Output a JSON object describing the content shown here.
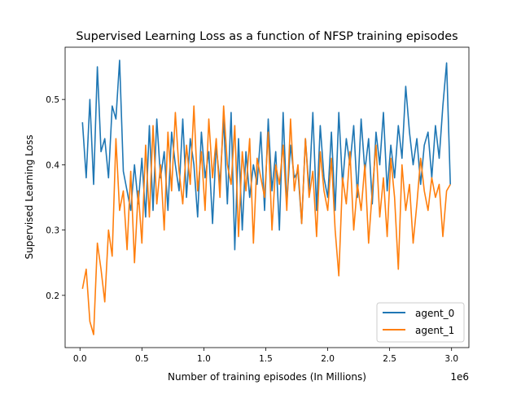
{
  "chart_data": {
    "type": "line",
    "title": "Supervised Learning Loss as a function of NFSP training episodes",
    "xlabel": "Number of training episodes (In Millions)",
    "ylabel": "Supervised Learning Loss",
    "x_offset_label": "1e6",
    "xlim": [
      -120000,
      3140000
    ],
    "ylim": [
      0.12,
      0.58
    ],
    "xticks": [
      0,
      500000,
      1000000,
      1500000,
      2000000,
      2500000,
      3000000
    ],
    "xtick_labels": [
      "0.0",
      "0.5",
      "1.0",
      "1.5",
      "2.0",
      "2.5",
      "3.0"
    ],
    "yticks": [
      0.2,
      0.3,
      0.4,
      0.5
    ],
    "ytick_labels": [
      "0.2",
      "0.3",
      "0.4",
      "0.5"
    ],
    "grid": false,
    "legend_position": "lower-right",
    "x": [
      20000,
      50000,
      80000,
      110000,
      140000,
      170000,
      200000,
      230000,
      260000,
      290000,
      320000,
      350000,
      380000,
      410000,
      440000,
      470000,
      500000,
      530000,
      560000,
      590000,
      620000,
      650000,
      680000,
      710000,
      740000,
      770000,
      800000,
      830000,
      860000,
      890000,
      920000,
      950000,
      980000,
      1010000,
      1040000,
      1070000,
      1100000,
      1130000,
      1160000,
      1190000,
      1220000,
      1250000,
      1280000,
      1310000,
      1340000,
      1370000,
      1400000,
      1430000,
      1460000,
      1490000,
      1520000,
      1550000,
      1580000,
      1610000,
      1640000,
      1670000,
      1700000,
      1730000,
      1760000,
      1790000,
      1820000,
      1850000,
      1880000,
      1910000,
      1940000,
      1970000,
      2000000,
      2030000,
      2060000,
      2090000,
      2120000,
      2150000,
      2180000,
      2210000,
      2240000,
      2270000,
      2300000,
      2330000,
      2360000,
      2390000,
      2420000,
      2450000,
      2480000,
      2510000,
      2540000,
      2570000,
      2600000,
      2630000,
      2660000,
      2690000,
      2720000,
      2750000,
      2780000,
      2810000,
      2840000,
      2870000,
      2900000,
      2930000,
      2960000,
      2990000
    ],
    "series": [
      {
        "name": "agent_0",
        "color": "#1f77b4",
        "values": [
          0.465,
          0.38,
          0.5,
          0.37,
          0.55,
          0.42,
          0.44,
          0.38,
          0.49,
          0.47,
          0.56,
          0.39,
          0.36,
          0.33,
          0.4,
          0.34,
          0.41,
          0.32,
          0.46,
          0.33,
          0.47,
          0.38,
          0.42,
          0.33,
          0.45,
          0.4,
          0.36,
          0.47,
          0.35,
          0.44,
          0.4,
          0.32,
          0.45,
          0.38,
          0.42,
          0.31,
          0.43,
          0.37,
          0.47,
          0.34,
          0.48,
          0.27,
          0.44,
          0.3,
          0.42,
          0.35,
          0.4,
          0.37,
          0.45,
          0.33,
          0.47,
          0.36,
          0.42,
          0.3,
          0.48,
          0.34,
          0.43,
          0.38,
          0.39,
          0.31,
          0.44,
          0.36,
          0.48,
          0.33,
          0.46,
          0.38,
          0.35,
          0.45,
          0.33,
          0.48,
          0.37,
          0.44,
          0.4,
          0.46,
          0.35,
          0.47,
          0.39,
          0.44,
          0.34,
          0.45,
          0.4,
          0.48,
          0.36,
          0.43,
          0.38,
          0.46,
          0.41,
          0.52,
          0.45,
          0.4,
          0.44,
          0.37,
          0.43,
          0.45,
          0.38,
          0.46,
          0.41,
          0.49,
          0.556,
          0.37
        ]
      },
      {
        "name": "agent_1",
        "color": "#ff7f0e",
        "values": [
          0.21,
          0.24,
          0.16,
          0.14,
          0.28,
          0.24,
          0.19,
          0.3,
          0.26,
          0.44,
          0.33,
          0.36,
          0.27,
          0.39,
          0.25,
          0.36,
          0.28,
          0.43,
          0.32,
          0.46,
          0.34,
          0.4,
          0.3,
          0.45,
          0.36,
          0.48,
          0.39,
          0.34,
          0.43,
          0.37,
          0.49,
          0.36,
          0.42,
          0.33,
          0.47,
          0.38,
          0.44,
          0.35,
          0.49,
          0.4,
          0.37,
          0.46,
          0.29,
          0.42,
          0.36,
          0.44,
          0.28,
          0.41,
          0.38,
          0.35,
          0.45,
          0.3,
          0.4,
          0.37,
          0.43,
          0.33,
          0.47,
          0.36,
          0.4,
          0.31,
          0.44,
          0.35,
          0.39,
          0.29,
          0.42,
          0.36,
          0.33,
          0.41,
          0.3,
          0.23,
          0.38,
          0.34,
          0.42,
          0.3,
          0.37,
          0.33,
          0.4,
          0.28,
          0.36,
          0.43,
          0.32,
          0.38,
          0.29,
          0.41,
          0.35,
          0.24,
          0.4,
          0.33,
          0.37,
          0.28,
          0.34,
          0.41,
          0.36,
          0.33,
          0.38,
          0.35,
          0.37,
          0.29,
          0.36,
          0.37
        ]
      }
    ]
  }
}
